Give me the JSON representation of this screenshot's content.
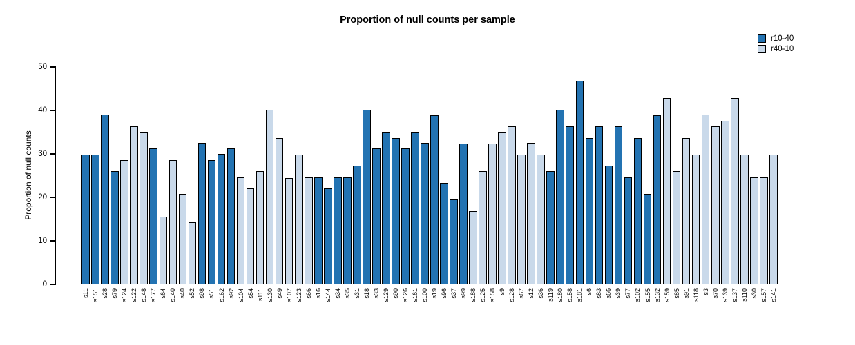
{
  "chart_data": {
    "type": "bar",
    "title": "Proportion of null counts per sample",
    "xlabel": "",
    "ylabel": "Proportion of null counts",
    "ylim": [
      0,
      50
    ],
    "yticks": [
      0,
      10,
      20,
      30,
      40,
      50
    ],
    "grid": false,
    "legend_position": "top-right",
    "zero_line_style": "dashed",
    "series": [
      {
        "name": "r10-40",
        "color": "#2373b2"
      },
      {
        "name": "r40-10",
        "color": "#c9d9ea"
      }
    ],
    "categories": [
      "s11",
      "s151",
      "s28",
      "s79",
      "s124",
      "s122",
      "s148",
      "s177",
      "s64",
      "s140",
      "s40",
      "s52",
      "s98",
      "s51",
      "s162",
      "s92",
      "s104",
      "s54",
      "s111",
      "s130",
      "s49",
      "s107",
      "s123",
      "s66",
      "s16",
      "s144",
      "s34",
      "s35",
      "s31",
      "s18",
      "s33",
      "s129",
      "s90",
      "s126",
      "s161",
      "s100",
      "s19",
      "s96",
      "s37",
      "s99",
      "s188",
      "s125",
      "s158",
      "s9",
      "s128",
      "s67",
      "s12",
      "s36",
      "s119",
      "s180",
      "s158",
      "s181",
      "s6",
      "s83",
      "s66",
      "s39",
      "s77",
      "s102",
      "s155",
      "s132",
      "s159",
      "s85",
      "s91",
      "s118",
      "s3",
      "s70",
      "s139",
      "s137",
      "s110",
      "s30",
      "s157",
      "s141"
    ],
    "values": [
      29.8,
      29.8,
      39,
      26,
      28.6,
      36.4,
      35,
      31.2,
      15.6,
      28.5,
      20.8,
      14.3,
      32.5,
      28.6,
      30,
      31.2,
      24.6,
      22.1,
      26,
      40.2,
      33.7,
      24.5,
      29.8,
      24.6,
      24.6,
      22,
      24.6,
      24.6,
      27.3,
      40.1,
      31.2,
      35,
      33.7,
      31.2,
      35,
      32.5,
      38.9,
      23.4,
      19.6,
      32.4,
      16.9,
      26,
      32.4,
      35,
      36.4,
      29.9,
      32.5,
      29.8,
      26,
      40.2,
      36.4,
      46.8,
      33.7,
      36.4,
      27.3,
      36.4,
      24.6,
      33.7,
      20.8,
      38.9,
      42.8,
      26,
      33.7,
      29.9,
      39,
      36.4,
      37.6,
      42.8,
      29.8,
      24.6,
      24.6,
      29.8
    ],
    "groups": [
      "r10-40",
      "r10-40",
      "r10-40",
      "r10-40",
      "r40-10",
      "r40-10",
      "r40-10",
      "r10-40",
      "r40-10",
      "r40-10",
      "r40-10",
      "r40-10",
      "r10-40",
      "r10-40",
      "r10-40",
      "r10-40",
      "r40-10",
      "r40-10",
      "r40-10",
      "r40-10",
      "r40-10",
      "r40-10",
      "r40-10",
      "r40-10",
      "r10-40",
      "r10-40",
      "r10-40",
      "r10-40",
      "r10-40",
      "r10-40",
      "r10-40",
      "r10-40",
      "r10-40",
      "r10-40",
      "r10-40",
      "r10-40",
      "r10-40",
      "r10-40",
      "r10-40",
      "r10-40",
      "r40-10",
      "r40-10",
      "r40-10",
      "r40-10",
      "r40-10",
      "r40-10",
      "r40-10",
      "r40-10",
      "r10-40",
      "r10-40",
      "r10-40",
      "r10-40",
      "r10-40",
      "r10-40",
      "r10-40",
      "r10-40",
      "r10-40",
      "r10-40",
      "r10-40",
      "r10-40",
      "r40-10",
      "r40-10",
      "r40-10",
      "r40-10",
      "r40-10",
      "r40-10",
      "r40-10",
      "r40-10",
      "r40-10",
      "r40-10",
      "r40-10",
      "r40-10"
    ]
  }
}
